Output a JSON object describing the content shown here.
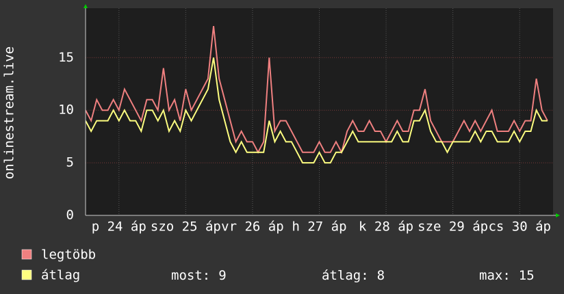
{
  "chart_data": {
    "type": "line",
    "y_label": "onlinestream.live",
    "x": [
      0,
      2,
      4,
      6,
      8,
      10,
      12,
      14,
      16,
      18,
      20,
      22,
      24,
      26,
      28,
      30,
      32,
      34,
      36,
      38,
      40,
      42,
      44,
      46,
      48,
      50,
      52,
      54,
      56,
      58,
      60,
      62,
      64,
      66,
      68,
      70,
      72,
      74,
      76,
      78,
      80,
      82,
      84,
      86,
      88,
      90,
      92,
      94,
      96,
      98,
      100,
      102,
      104,
      106,
      108,
      110,
      112,
      114,
      116,
      118,
      120,
      122,
      124,
      126,
      128,
      130,
      132,
      134,
      136,
      138,
      140,
      142,
      144,
      146,
      148,
      150,
      152,
      154,
      156,
      158,
      160,
      162,
      164,
      166
    ],
    "series": [
      {
        "name": "legtöbb",
        "color": "#f08080",
        "values": [
          10,
          9,
          11,
          10,
          10,
          11,
          10,
          12,
          11,
          10,
          9,
          11,
          11,
          10,
          14,
          10,
          11,
          9,
          12,
          10,
          11,
          12,
          13,
          18,
          13,
          11,
          9,
          7,
          8,
          7,
          7,
          6,
          7,
          15,
          8,
          9,
          9,
          8,
          7,
          6,
          6,
          6,
          7,
          6,
          6,
          7,
          6,
          8,
          9,
          8,
          8,
          9,
          8,
          8,
          7,
          8,
          9,
          8,
          8,
          10,
          10,
          12,
          9,
          8,
          7,
          7,
          7,
          8,
          9,
          8,
          9,
          8,
          9,
          10,
          8,
          8,
          8,
          9,
          8,
          9,
          9,
          13,
          10,
          9
        ]
      },
      {
        "name": "átlag",
        "color": "#ffff80",
        "values": [
          9,
          8,
          9,
          9,
          9,
          10,
          9,
          10,
          9,
          9,
          8,
          10,
          10,
          9,
          10,
          8,
          9,
          8,
          10,
          9,
          10,
          11,
          12,
          15,
          11,
          9,
          7,
          6,
          7,
          6,
          6,
          6,
          6,
          9,
          7,
          8,
          7,
          7,
          6,
          5,
          5,
          5,
          6,
          5,
          5,
          6,
          6,
          7,
          8,
          7,
          7,
          7,
          7,
          7,
          7,
          7,
          8,
          7,
          7,
          9,
          9,
          10,
          8,
          7,
          7,
          6,
          7,
          7,
          7,
          7,
          8,
          7,
          8,
          8,
          7,
          7,
          7,
          8,
          7,
          8,
          8,
          10,
          9,
          9
        ]
      }
    ],
    "xlim": [
      0,
      168
    ],
    "xticks": [
      {
        "value": 12,
        "label": "p 24 áp"
      },
      {
        "value": 36,
        "label": "szo 25 áp"
      },
      {
        "value": 60,
        "label": "vr 26 áp"
      },
      {
        "value": 84,
        "label": "h 27 áp"
      },
      {
        "value": 108,
        "label": "k 28 áp"
      },
      {
        "value": 132,
        "label": "sze 29 áp"
      },
      {
        "value": 156,
        "label": "cs 30 áp"
      }
    ],
    "ylim": [
      0,
      19.7
    ],
    "yticks": [
      0,
      5,
      10,
      15
    ],
    "grid": true,
    "stats": [
      {
        "label": "most:",
        "value": 9
      },
      {
        "label": "átlag:",
        "value": 8
      },
      {
        "label": "max:",
        "value": 15
      }
    ]
  }
}
